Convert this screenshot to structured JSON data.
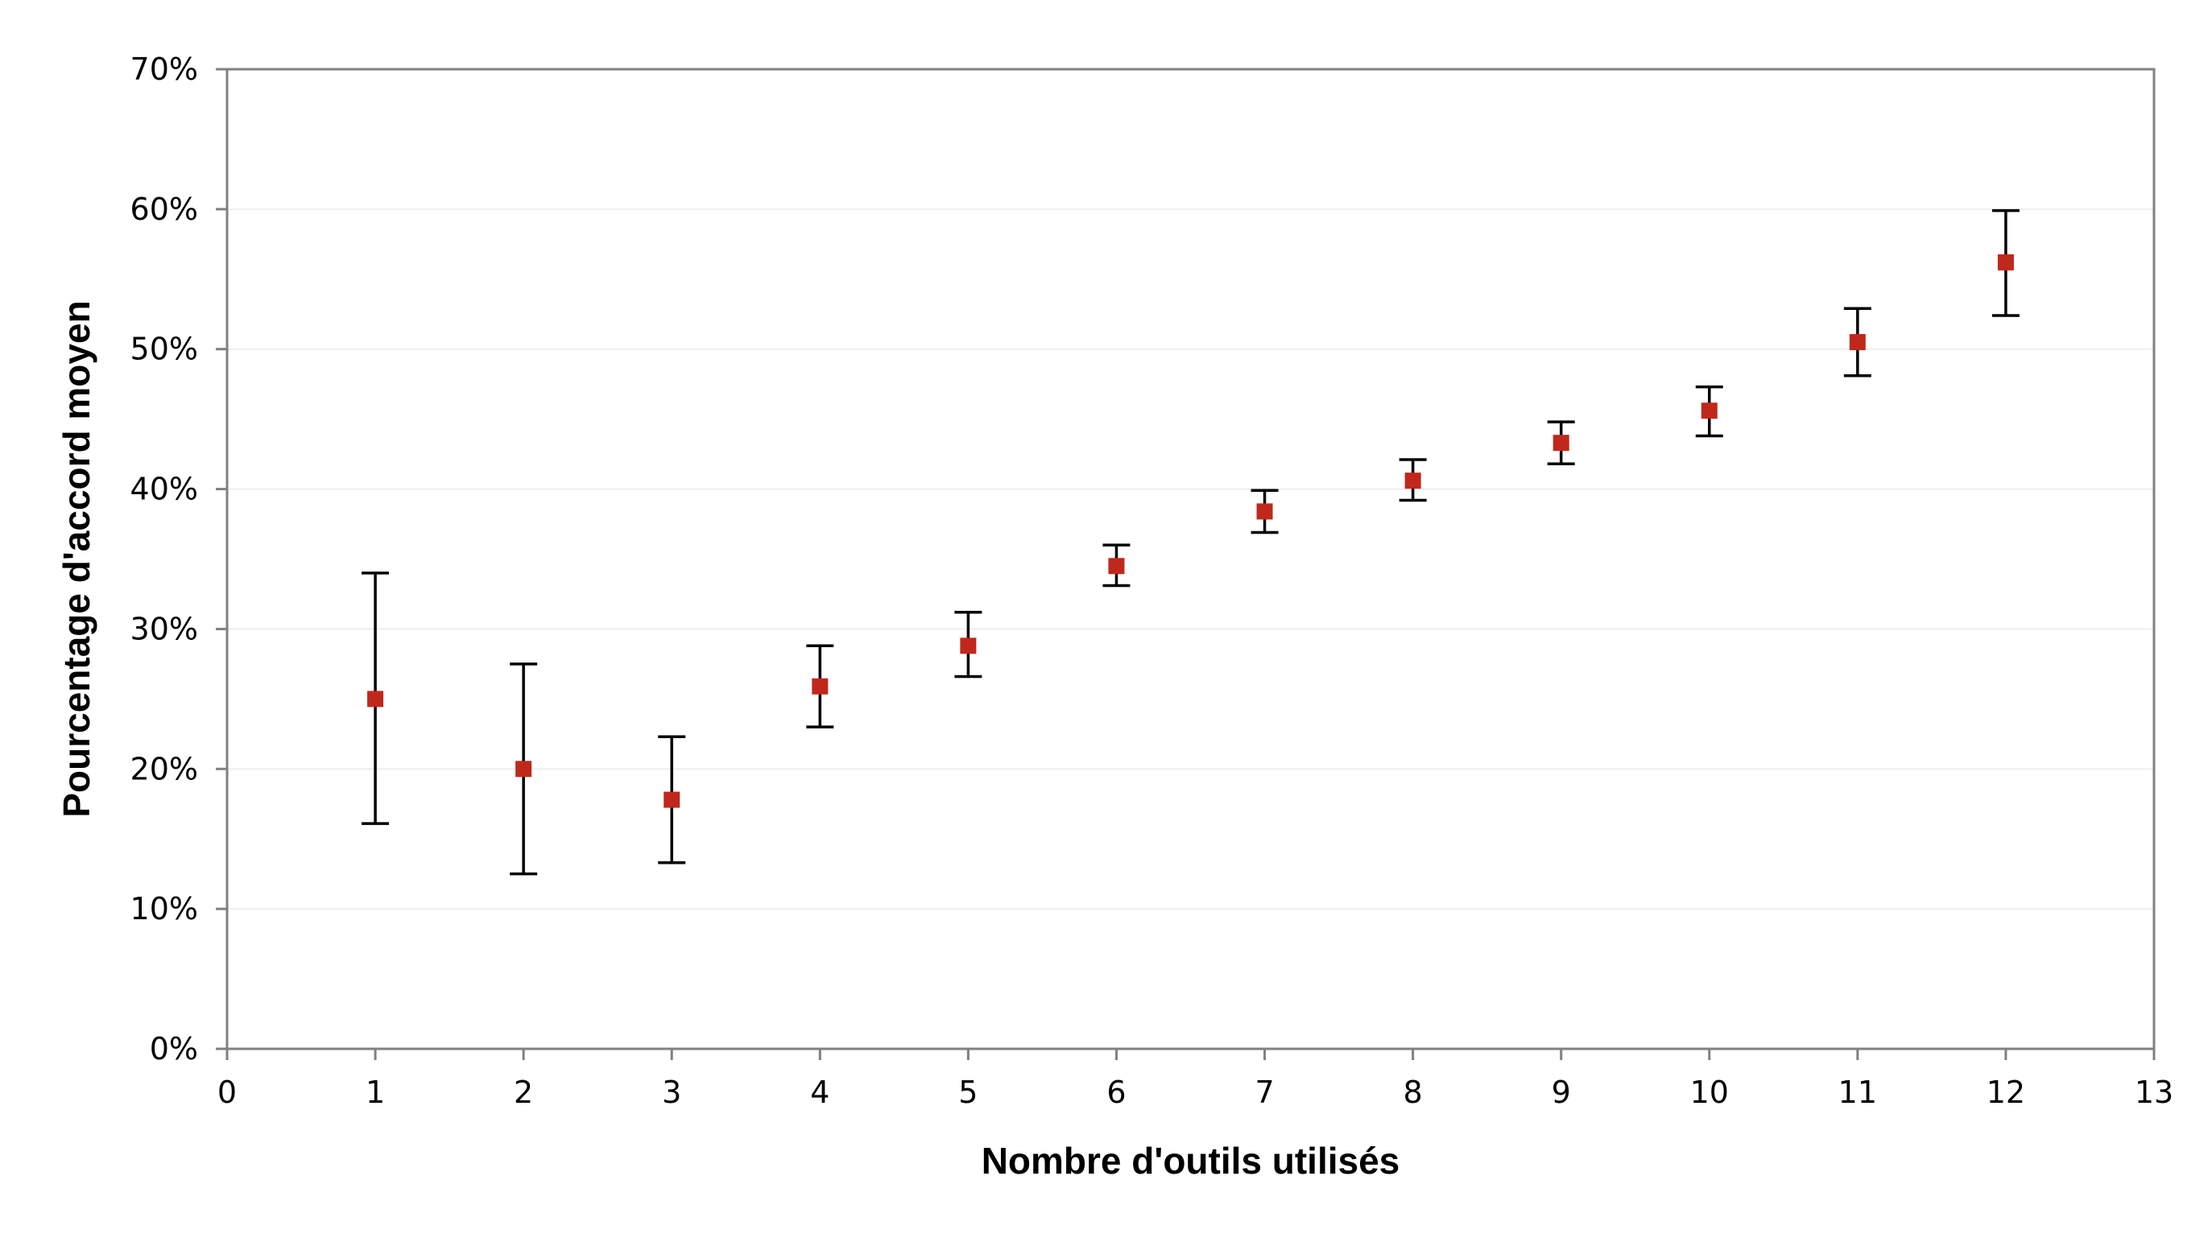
{
  "chart_data": {
    "type": "scatter",
    "title": "",
    "xlabel": "Nombre d'outils utilisés",
    "ylabel": "Pourcentage d'accord moyen",
    "xlim": [
      0,
      13
    ],
    "ylim": [
      0,
      0.7
    ],
    "x_ticks": [
      "0",
      "1",
      "2",
      "3",
      "4",
      "5",
      "6",
      "7",
      "8",
      "9",
      "10",
      "11",
      "12",
      "13"
    ],
    "y_ticks": [
      "0%",
      "10%",
      "20%",
      "30%",
      "40%",
      "50%",
      "60%",
      "70%"
    ],
    "grid": "horizontal",
    "legend": "none",
    "marker_color": "#c0281c",
    "series": [
      {
        "x": [
          1,
          2,
          3,
          4,
          5,
          6,
          7,
          8,
          9,
          10,
          11,
          12
        ],
        "y": [
          0.25,
          0.2,
          0.178,
          0.259,
          0.288,
          0.345,
          0.384,
          0.406,
          0.433,
          0.456,
          0.505,
          0.562
        ],
        "err_low": [
          0.161,
          0.125,
          0.133,
          0.23,
          0.266,
          0.331,
          0.369,
          0.392,
          0.418,
          0.438,
          0.481,
          0.524
        ],
        "err_high": [
          0.34,
          0.275,
          0.223,
          0.288,
          0.312,
          0.36,
          0.399,
          0.421,
          0.448,
          0.473,
          0.529,
          0.599
        ]
      }
    ]
  }
}
